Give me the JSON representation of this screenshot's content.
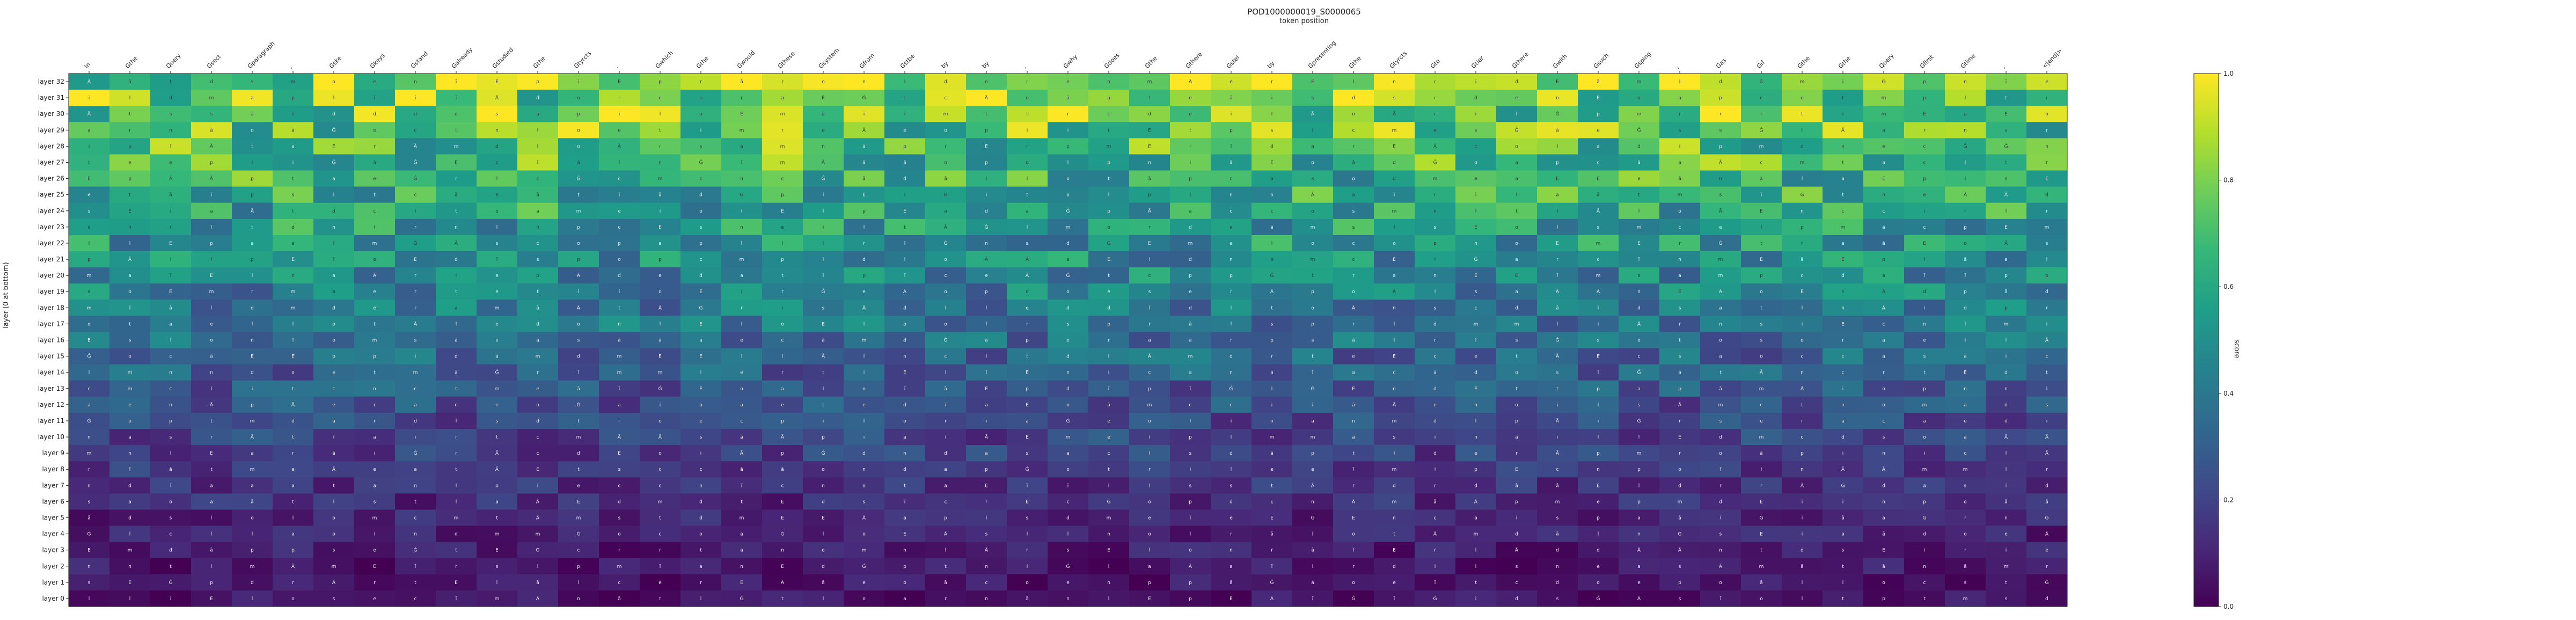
{
  "chart_data": {
    "type": "heatmap",
    "title": "POD1000000019_S0000065",
    "subtitle": "token position",
    "ylabel": "layer (0 at bottom)",
    "colorbar_label": "score",
    "colormap": "viridis",
    "vmin": 0.0,
    "vmax": 1.0,
    "colorbar_ticks": [
      "0.0",
      "0.2",
      "0.4",
      "0.6",
      "0.8",
      "1.0"
    ],
    "x_tokens": [
      "in",
      "Gthe",
      "Query",
      "Gsect",
      "Gparagraph",
      ",",
      "Gske",
      "Gkeys",
      "Gstand",
      "Galready",
      "Gstudied",
      "Gthe",
      "Gtyrcts",
      ",",
      "Gwhich",
      "Gthe",
      "Gwould",
      "Gthese",
      "Gsystem",
      "Gfrom",
      "Gstbe",
      "by",
      "by",
      ",",
      "Gwhy",
      "Gdoes",
      "Gthe",
      "Gthere",
      "Gstel",
      "by",
      "Gpresenting",
      "Gthe",
      "Gtyrcts",
      "Gto",
      "Gtier",
      "Gthere",
      "Gwith",
      "Gsuch",
      "Gsping",
      ",",
      "Gas",
      "Gif",
      "Gthe",
      "Gthe",
      "Query",
      "Gfirst",
      "Gtime",
      ",",
      "<|end|>"
    ],
    "y_layers": [
      "layer 32",
      "layer 31",
      "layer 30",
      "layer 29",
      "layer 28",
      "layer 27",
      "layer 26",
      "layer 25",
      "layer 24",
      "layer 23",
      "layer 22",
      "layer 21",
      "layer 20",
      "layer 19",
      "layer 18",
      "layer 17",
      "layer 16",
      "layer 15",
      "layer 14",
      "layer 13",
      "layer 12",
      "layer 11",
      "layer 10",
      "layer 9",
      "layer 8",
      "layer 7",
      "layer 6",
      "layer 5",
      "layer 4",
      "layer 3",
      "layer 2",
      "layer 1",
      "layer 0"
    ],
    "grid": false
  }
}
